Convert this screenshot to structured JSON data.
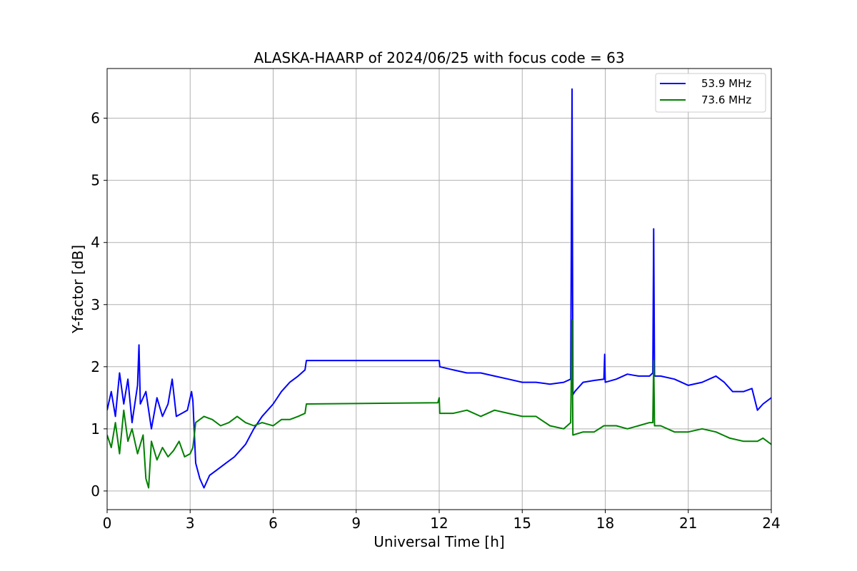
{
  "chart_data": {
    "type": "line",
    "title": "ALASKA-HAARP of 2024/06/25 with focus code = 63",
    "xlabel": "Universal Time [h]",
    "ylabel": "Y-factor [dB]",
    "xlim": [
      0,
      24
    ],
    "ylim": [
      -0.3,
      6.8
    ],
    "xticks": [
      0,
      3,
      6,
      9,
      12,
      15,
      18,
      21,
      24
    ],
    "yticks": [
      0,
      1,
      2,
      3,
      4,
      5,
      6
    ],
    "grid": true,
    "legend_position": "top-right",
    "series": [
      {
        "name": "53.9 MHz",
        "color": "#0000ff",
        "points": [
          [
            0.0,
            1.3
          ],
          [
            0.15,
            1.6
          ],
          [
            0.3,
            1.2
          ],
          [
            0.45,
            1.9
          ],
          [
            0.6,
            1.4
          ],
          [
            0.75,
            1.8
          ],
          [
            0.9,
            1.1
          ],
          [
            1.1,
            1.7
          ],
          [
            1.15,
            2.35
          ],
          [
            1.2,
            1.4
          ],
          [
            1.4,
            1.6
          ],
          [
            1.6,
            1.0
          ],
          [
            1.8,
            1.5
          ],
          [
            2.0,
            1.2
          ],
          [
            2.2,
            1.4
          ],
          [
            2.35,
            1.8
          ],
          [
            2.5,
            1.2
          ],
          [
            2.7,
            1.25
          ],
          [
            2.9,
            1.3
          ],
          [
            3.05,
            1.6
          ],
          [
            3.1,
            1.45
          ],
          [
            3.2,
            0.45
          ],
          [
            3.35,
            0.2
          ],
          [
            3.5,
            0.05
          ],
          [
            3.7,
            0.25
          ],
          [
            4.0,
            0.35
          ],
          [
            4.3,
            0.45
          ],
          [
            4.6,
            0.55
          ],
          [
            5.0,
            0.75
          ],
          [
            5.3,
            1.0
          ],
          [
            5.6,
            1.2
          ],
          [
            6.0,
            1.4
          ],
          [
            6.3,
            1.6
          ],
          [
            6.6,
            1.75
          ],
          [
            6.9,
            1.85
          ],
          [
            7.15,
            1.95
          ],
          [
            7.2,
            2.1
          ],
          [
            11.95,
            2.1
          ],
          [
            12.0,
            2.1
          ],
          [
            12.02,
            2.0
          ],
          [
            12.5,
            1.95
          ],
          [
            13.0,
            1.9
          ],
          [
            13.5,
            1.9
          ],
          [
            14.0,
            1.85
          ],
          [
            14.5,
            1.8
          ],
          [
            15.0,
            1.75
          ],
          [
            15.5,
            1.75
          ],
          [
            16.0,
            1.72
          ],
          [
            16.5,
            1.75
          ],
          [
            16.75,
            1.8
          ],
          [
            16.8,
            6.47
          ],
          [
            16.83,
            1.55
          ],
          [
            16.9,
            1.6
          ],
          [
            17.2,
            1.75
          ],
          [
            17.6,
            1.78
          ],
          [
            17.95,
            1.8
          ],
          [
            17.98,
            2.2
          ],
          [
            18.0,
            1.75
          ],
          [
            18.4,
            1.8
          ],
          [
            18.8,
            1.88
          ],
          [
            19.2,
            1.85
          ],
          [
            19.6,
            1.85
          ],
          [
            19.72,
            1.9
          ],
          [
            19.75,
            4.22
          ],
          [
            19.78,
            1.85
          ],
          [
            20.0,
            1.85
          ],
          [
            20.5,
            1.8
          ],
          [
            21.0,
            1.7
          ],
          [
            21.5,
            1.75
          ],
          [
            22.0,
            1.85
          ],
          [
            22.3,
            1.75
          ],
          [
            22.6,
            1.6
          ],
          [
            23.0,
            1.6
          ],
          [
            23.3,
            1.65
          ],
          [
            23.5,
            1.3
          ],
          [
            23.7,
            1.4
          ],
          [
            24.0,
            1.5
          ]
        ]
      },
      {
        "name": "73.6 MHz",
        "color": "#008000",
        "points": [
          [
            0.0,
            0.9
          ],
          [
            0.15,
            0.7
          ],
          [
            0.3,
            1.1
          ],
          [
            0.45,
            0.6
          ],
          [
            0.6,
            1.3
          ],
          [
            0.75,
            0.8
          ],
          [
            0.9,
            1.0
          ],
          [
            1.1,
            0.6
          ],
          [
            1.3,
            0.9
          ],
          [
            1.4,
            0.2
          ],
          [
            1.5,
            0.05
          ],
          [
            1.6,
            0.8
          ],
          [
            1.8,
            0.5
          ],
          [
            2.0,
            0.7
          ],
          [
            2.2,
            0.55
          ],
          [
            2.4,
            0.65
          ],
          [
            2.6,
            0.8
          ],
          [
            2.8,
            0.55
          ],
          [
            3.0,
            0.6
          ],
          [
            3.1,
            0.7
          ],
          [
            3.2,
            1.1
          ],
          [
            3.5,
            1.2
          ],
          [
            3.8,
            1.15
          ],
          [
            4.1,
            1.05
          ],
          [
            4.4,
            1.1
          ],
          [
            4.7,
            1.2
          ],
          [
            5.0,
            1.1
          ],
          [
            5.3,
            1.05
          ],
          [
            5.6,
            1.1
          ],
          [
            6.0,
            1.05
          ],
          [
            6.3,
            1.15
          ],
          [
            6.6,
            1.15
          ],
          [
            6.9,
            1.2
          ],
          [
            7.15,
            1.25
          ],
          [
            7.2,
            1.4
          ],
          [
            11.95,
            1.42
          ],
          [
            12.0,
            1.5
          ],
          [
            12.02,
            1.25
          ],
          [
            12.5,
            1.25
          ],
          [
            13.0,
            1.3
          ],
          [
            13.5,
            1.2
          ],
          [
            14.0,
            1.3
          ],
          [
            14.5,
            1.25
          ],
          [
            15.0,
            1.2
          ],
          [
            15.5,
            1.2
          ],
          [
            16.0,
            1.05
          ],
          [
            16.5,
            1.0
          ],
          [
            16.75,
            1.1
          ],
          [
            16.8,
            2.75
          ],
          [
            16.83,
            0.9
          ],
          [
            17.2,
            0.95
          ],
          [
            17.6,
            0.95
          ],
          [
            17.95,
            1.05
          ],
          [
            18.4,
            1.05
          ],
          [
            18.8,
            1.0
          ],
          [
            19.2,
            1.05
          ],
          [
            19.6,
            1.1
          ],
          [
            19.72,
            1.1
          ],
          [
            19.75,
            2.1
          ],
          [
            19.78,
            1.05
          ],
          [
            20.0,
            1.05
          ],
          [
            20.5,
            0.95
          ],
          [
            21.0,
            0.95
          ],
          [
            21.5,
            1.0
          ],
          [
            22.0,
            0.95
          ],
          [
            22.5,
            0.85
          ],
          [
            23.0,
            0.8
          ],
          [
            23.5,
            0.8
          ],
          [
            23.7,
            0.85
          ],
          [
            24.0,
            0.75
          ]
        ]
      }
    ]
  }
}
